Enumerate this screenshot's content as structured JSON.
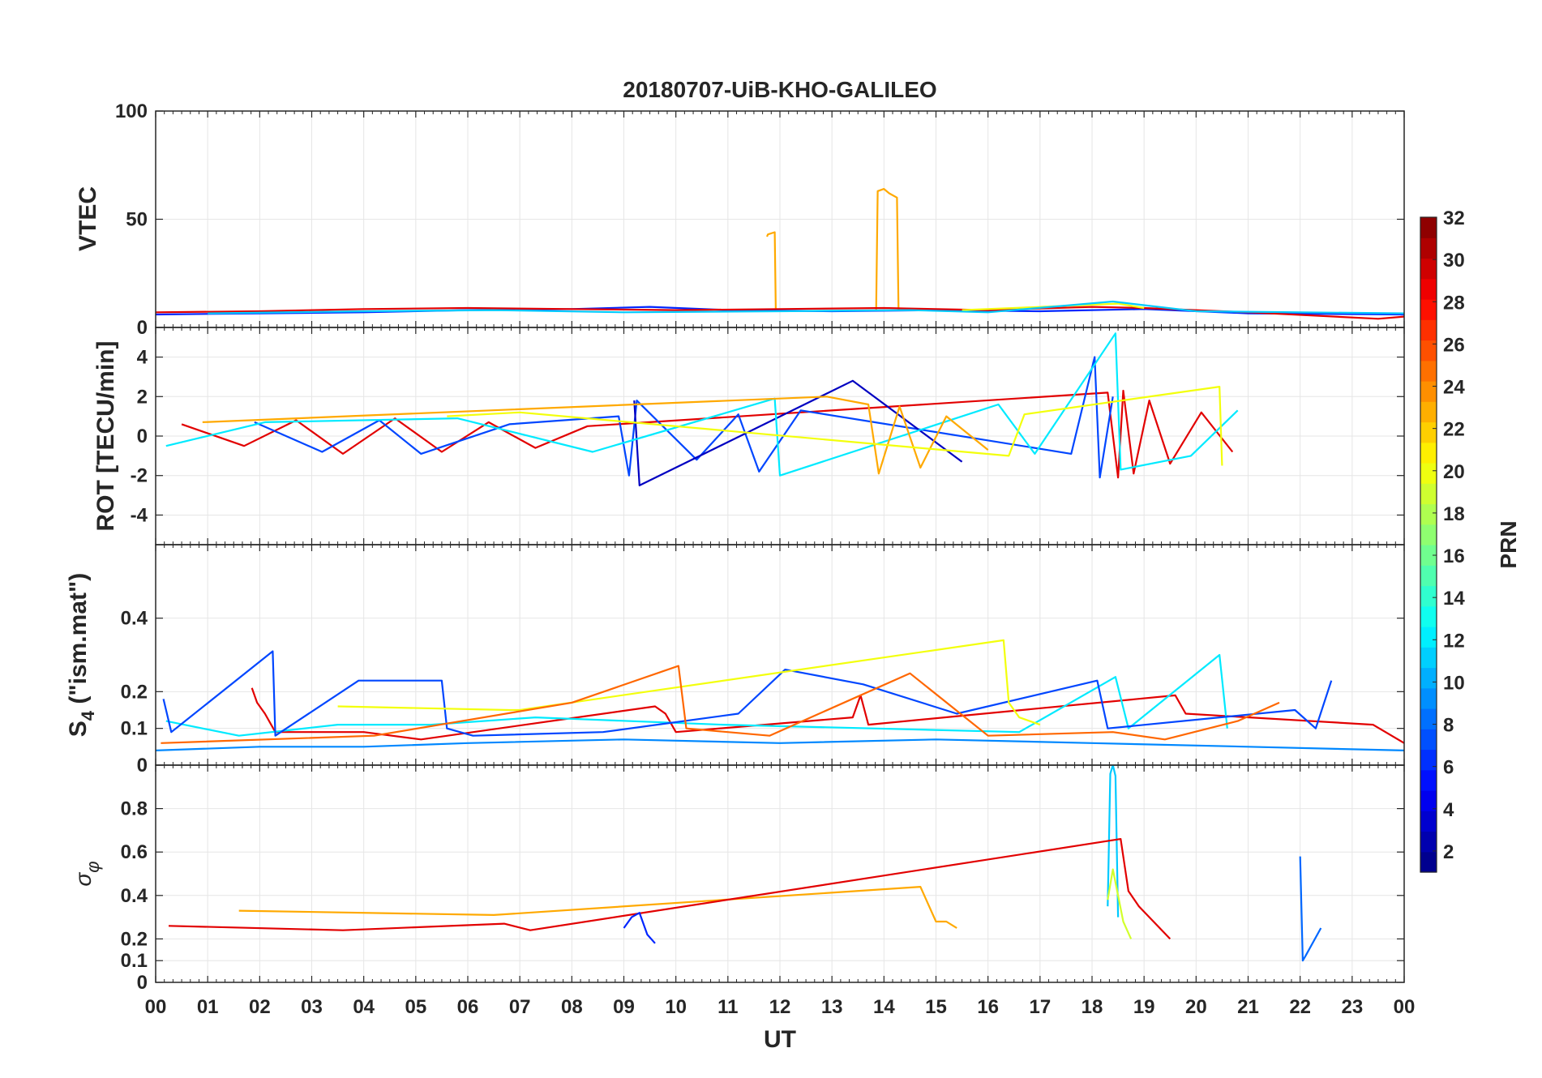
{
  "chart_data": {
    "title": "20180707-UiB-KHO-GALILEO",
    "type": "line",
    "xlabel": "UT",
    "xlim": [
      0,
      24
    ],
    "x_tick_labels": [
      "00",
      "01",
      "02",
      "03",
      "04",
      "05",
      "06",
      "07",
      "08",
      "09",
      "10",
      "11",
      "12",
      "13",
      "14",
      "15",
      "16",
      "17",
      "18",
      "19",
      "20",
      "21",
      "22",
      "23",
      "00"
    ],
    "grid": true,
    "colorbar": {
      "label": "PRN",
      "range": [
        1,
        32
      ],
      "ticks": [
        "2",
        "4",
        "6",
        "8",
        "10",
        "12",
        "14",
        "16",
        "18",
        "20",
        "22",
        "24",
        "26",
        "28",
        "30",
        "32"
      ],
      "colormap": "jet",
      "colors": [
        "#00008f",
        "#0000ff",
        "#0080ff",
        "#00ffff",
        "#80ff80",
        "#ffff00",
        "#ff8000",
        "#ff0000",
        "#800000"
      ]
    },
    "panels": [
      {
        "id": "vtec",
        "ylabel": "VTEC",
        "ylim": [
          0,
          100
        ],
        "yticks": [
          "0",
          "50",
          "100"
        ],
        "series": [
          {
            "prn": 23,
            "x": [
              11.75,
              11.77,
              11.9,
              11.92
            ],
            "y": [
              42,
              43,
              44,
              8
            ]
          },
          {
            "prn": 23,
            "x": [
              13.85,
              13.88,
              14.0,
              14.1,
              14.25,
              14.28
            ],
            "y": [
              8,
              63,
              64,
              62,
              60,
              8
            ]
          },
          {
            "prn": 6,
            "x": [
              0,
              2,
              4,
              6,
              8,
              9.5,
              11,
              13,
              15,
              17,
              19,
              21,
              24
            ],
            "y": [
              6,
              6.5,
              7,
              8,
              8.5,
              9.5,
              8,
              7.5,
              8,
              7.5,
              8.5,
              6.5,
              6
            ]
          },
          {
            "prn": 29,
            "x": [
              0,
              2,
              4,
              6,
              8,
              10,
              12,
              14,
              16,
              18,
              19,
              21,
              23.5,
              24
            ],
            "y": [
              7,
              7.5,
              8.5,
              9,
              8.5,
              8,
              8.5,
              9,
              8,
              9.5,
              9,
              7,
              4,
              5
            ]
          },
          {
            "prn": 20,
            "x": [
              15.5,
              16.5,
              17.5,
              18.5,
              19
            ],
            "y": [
              8,
              9,
              10,
              11,
              9
            ]
          },
          {
            "prn": 11,
            "x": [
              1,
              4,
              6.5,
              9,
              12,
              14.5,
              16,
              18.4,
              20,
              24
            ],
            "y": [
              6.5,
              7.5,
              8,
              7,
              7.5,
              8,
              7,
              12,
              7.5,
              6.5
            ]
          }
        ]
      },
      {
        "id": "rot",
        "ylabel": "ROT [TECU/min]",
        "ylim": [
          -5.5,
          5.5
        ],
        "yticks": [
          "-4",
          "-2",
          "0",
          "2",
          "4"
        ],
        "series": [
          {
            "prn": 29,
            "x": [
              0.5,
              1.7,
              2.7,
              3.6,
              4.6,
              5.5,
              6.4,
              7.3,
              8.3,
              18.3,
              18.5,
              18.6,
              18.8,
              19.1,
              19.5,
              20.1,
              20.7
            ],
            "y": [
              0.6,
              -0.5,
              0.8,
              -0.9,
              0.9,
              -0.8,
              0.7,
              -0.6,
              0.5,
              2.2,
              -2.1,
              2.3,
              -1.9,
              1.8,
              -1.4,
              1.2,
              -0.8
            ]
          },
          {
            "prn": 7,
            "x": [
              1.9,
              3.2,
              4.3,
              5.1,
              6.8,
              8.9,
              9.1,
              9.25,
              10.4,
              11.2,
              11.6,
              12.4,
              17.6,
              18.05,
              18.15,
              18.4
            ],
            "y": [
              0.7,
              -0.8,
              0.8,
              -0.9,
              0.6,
              1.0,
              -2.0,
              1.8,
              -1.2,
              1.1,
              -1.8,
              1.3,
              -0.9,
              4.0,
              -2.1,
              2.0
            ]
          },
          {
            "prn": 3,
            "x": [
              9.2,
              9.3,
              13.4,
              15.5
            ],
            "y": [
              1.8,
              -2.5,
              2.8,
              -1.3
            ]
          },
          {
            "prn": 12,
            "x": [
              0.2,
              2.1,
              5.8,
              8.4,
              11.9,
              12.0,
              16.2,
              16.9,
              18.45,
              18.55,
              19.9,
              20.8
            ],
            "y": [
              -0.5,
              0.7,
              0.9,
              -0.8,
              1.9,
              -2.0,
              1.6,
              -0.9,
              5.2,
              -1.7,
              -1.0,
              1.3
            ]
          },
          {
            "prn": 23,
            "x": [
              0.9,
              12.9,
              13.7,
              13.9,
              14.3,
              14.7,
              15.2,
              16.0
            ],
            "y": [
              0.7,
              2.0,
              1.6,
              -1.9,
              1.5,
              -1.6,
              1.0,
              -0.7
            ]
          },
          {
            "prn": 20,
            "x": [
              5.6,
              7.0,
              16.4,
              16.7,
              20.45,
              20.5
            ],
            "y": [
              1.0,
              1.2,
              -1.0,
              1.1,
              2.5,
              -1.5
            ]
          }
        ]
      },
      {
        "id": "s4",
        "ylabel": "S4 (\"ism.mat\")",
        "ylabel_main": "S",
        "ylabel_sub": "4",
        "ylabel_rest": " (\"ism.mat\")",
        "ylim": [
          0,
          0.6
        ],
        "yticks": [
          "0",
          "0.1",
          "0.2",
          "0.4"
        ],
        "series": [
          {
            "prn": 29,
            "x": [
              1.85,
              1.95,
              2.1,
              2.3,
              4.0,
              5.1,
              9.6,
              9.8,
              10.0,
              13.4,
              13.55,
              13.7,
              19.6,
              19.8,
              23.4,
              24
            ],
            "y": [
              0.21,
              0.17,
              0.14,
              0.09,
              0.09,
              0.07,
              0.16,
              0.14,
              0.09,
              0.13,
              0.19,
              0.11,
              0.19,
              0.14,
              0.11,
              0.06
            ]
          },
          {
            "prn": 12,
            "x": [
              0.2,
              1.6,
              3.5,
              5.3,
              7.3,
              10.9,
              16.6,
              18.45,
              18.7,
              20.45,
              20.6
            ],
            "y": [
              0.12,
              0.08,
              0.11,
              0.11,
              0.13,
              0.11,
              0.09,
              0.24,
              0.1,
              0.3,
              0.1
            ]
          },
          {
            "prn": 7,
            "x": [
              0.15,
              0.3,
              2.25,
              2.3,
              3.9,
              5.5,
              5.6,
              6.1,
              8.6,
              11.2,
              12.1,
              13.6,
              15.4,
              18.1,
              18.3,
              21.9,
              22.3,
              22.6
            ],
            "y": [
              0.18,
              0.09,
              0.31,
              0.08,
              0.23,
              0.23,
              0.1,
              0.08,
              0.09,
              0.14,
              0.26,
              0.22,
              0.14,
              0.23,
              0.1,
              0.15,
              0.1,
              0.23
            ]
          },
          {
            "prn": 20,
            "x": [
              3.5,
              6.8,
              7.0,
              16.3,
              16.4,
              16.6,
              17.0
            ],
            "y": [
              0.16,
              0.15,
              0.15,
              0.34,
              0.17,
              0.13,
              0.11
            ]
          },
          {
            "prn": 25,
            "x": [
              0.1,
              4.2,
              8.0,
              10.05,
              10.2,
              11.8,
              14.5,
              16.0,
              18.4,
              19.4,
              20.8,
              21.6
            ],
            "y": [
              0.06,
              0.08,
              0.17,
              0.27,
              0.1,
              0.08,
              0.25,
              0.08,
              0.09,
              0.07,
              0.12,
              0.17
            ]
          },
          {
            "prn": 9,
            "x": [
              0,
              2.0,
              4.0,
              6.0,
              9.0,
              12.0,
              15.0,
              18.0,
              21.0,
              24
            ],
            "y": [
              0.04,
              0.05,
              0.05,
              0.06,
              0.07,
              0.06,
              0.07,
              0.06,
              0.05,
              0.04
            ]
          }
        ]
      },
      {
        "id": "sigma_phi",
        "ylabel": "σφ",
        "ylabel_main": "σ",
        "ylabel_sub": "φ",
        "ylim": [
          0,
          1.0
        ],
        "yticks": [
          "0",
          "0.1",
          "0.2",
          "0.4",
          "0.6",
          "0.8"
        ],
        "series": [
          {
            "prn": 11,
            "x": [
              18.3,
              18.35,
              18.4,
              18.45,
              18.5
            ],
            "y": [
              0.35,
              0.96,
              1.0,
              0.95,
              0.3
            ]
          },
          {
            "prn": 8,
            "x": [
              22.0,
              22.05,
              22.1,
              22.4
            ],
            "y": [
              0.58,
              0.1,
              0.12,
              0.25
            ]
          },
          {
            "prn": 23,
            "x": [
              1.6,
              6.5,
              14.7,
              15.0,
              15.2,
              15.4
            ],
            "y": [
              0.33,
              0.31,
              0.44,
              0.28,
              0.28,
              0.25
            ]
          },
          {
            "prn": 29,
            "x": [
              0.25,
              3.6,
              6.7,
              7.2,
              18.55,
              18.7,
              18.9,
              19.5
            ],
            "y": [
              0.26,
              0.24,
              0.27,
              0.24,
              0.66,
              0.42,
              0.35,
              0.2
            ]
          },
          {
            "prn": 6,
            "x": [
              9.0,
              9.15,
              9.3,
              9.45,
              9.6
            ],
            "y": [
              0.25,
              0.3,
              0.32,
              0.22,
              0.18
            ]
          },
          {
            "prn": 19,
            "x": [
              18.3,
              18.4,
              18.6,
              18.75
            ],
            "y": [
              0.38,
              0.52,
              0.28,
              0.2
            ]
          }
        ]
      }
    ]
  }
}
